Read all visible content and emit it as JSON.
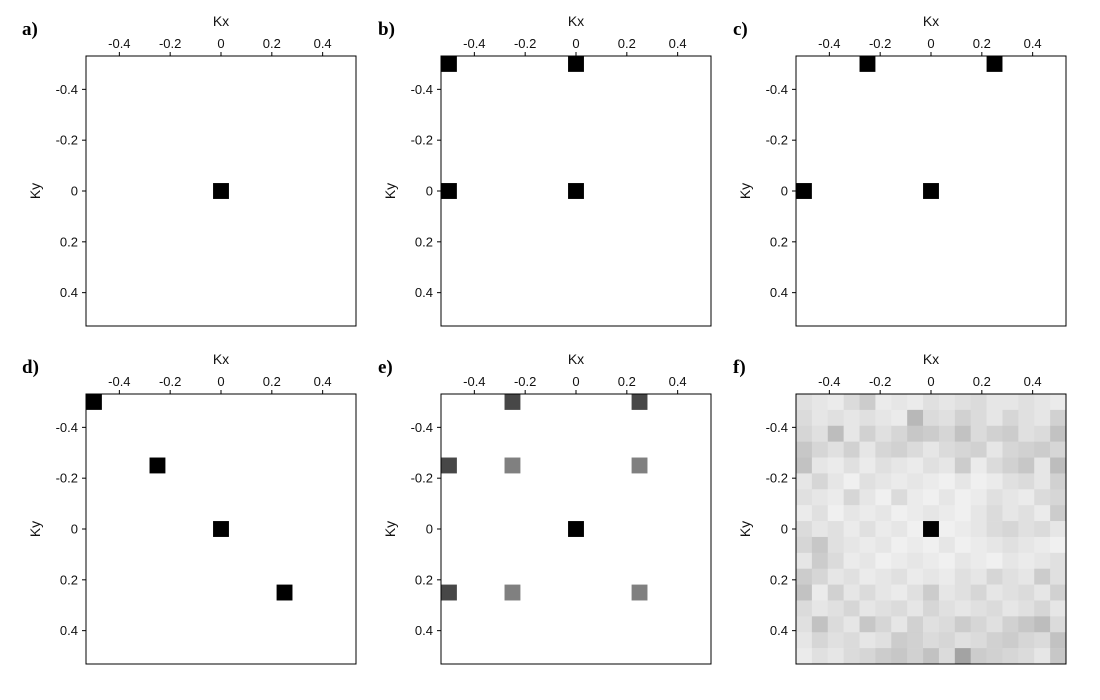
{
  "chart_data": [
    {
      "type": "heatmap",
      "panel_label": "a)",
      "xlabel": "Kx",
      "ylabel": "Ky",
      "xlim": [
        -0.53125,
        0.53125
      ],
      "ylim": [
        -0.53125,
        0.53125
      ],
      "y_inverted": true,
      "xticks": [
        "-0.4",
        "-0.2",
        "0",
        "0.2",
        "0.4"
      ],
      "yticks": [
        "-0.4",
        "-0.2",
        "0",
        "0.2",
        "0.4"
      ],
      "x_tick_position": "top",
      "cells": [
        {
          "kx": 0,
          "ky": 0,
          "intensity": 1
        }
      ]
    },
    {
      "type": "heatmap",
      "panel_label": "b)",
      "xlabel": "Kx",
      "ylabel": "Ky",
      "xlim": [
        -0.53125,
        0.53125
      ],
      "ylim": [
        -0.53125,
        0.53125
      ],
      "y_inverted": true,
      "xticks": [
        "-0.4",
        "-0.2",
        "0",
        "0.2",
        "0.4"
      ],
      "yticks": [
        "-0.4",
        "-0.2",
        "0",
        "0.2",
        "0.4"
      ],
      "x_tick_position": "top",
      "cells": [
        {
          "kx": -0.5,
          "ky": -0.5,
          "intensity": 1
        },
        {
          "kx": 0,
          "ky": -0.5,
          "intensity": 1
        },
        {
          "kx": -0.5,
          "ky": 0,
          "intensity": 1
        },
        {
          "kx": 0,
          "ky": 0,
          "intensity": 1
        }
      ]
    },
    {
      "type": "heatmap",
      "panel_label": "c)",
      "xlabel": "Kx",
      "ylabel": "Ky",
      "xlim": [
        -0.53125,
        0.53125
      ],
      "ylim": [
        -0.53125,
        0.53125
      ],
      "y_inverted": true,
      "xticks": [
        "-0.4",
        "-0.2",
        "0",
        "0.2",
        "0.4"
      ],
      "yticks": [
        "-0.4",
        "-0.2",
        "0",
        "0.2",
        "0.4"
      ],
      "x_tick_position": "top",
      "cells": [
        {
          "kx": -0.25,
          "ky": -0.5,
          "intensity": 1
        },
        {
          "kx": 0.25,
          "ky": -0.5,
          "intensity": 1
        },
        {
          "kx": -0.5,
          "ky": 0,
          "intensity": 1
        },
        {
          "kx": 0,
          "ky": 0,
          "intensity": 1
        }
      ]
    },
    {
      "type": "heatmap",
      "panel_label": "d)",
      "xlabel": "Kx",
      "ylabel": "Ky",
      "xlim": [
        -0.53125,
        0.53125
      ],
      "ylim": [
        -0.53125,
        0.53125
      ],
      "y_inverted": true,
      "xticks": [
        "-0.4",
        "-0.2",
        "0",
        "0.2",
        "0.4"
      ],
      "yticks": [
        "-0.4",
        "-0.2",
        "0",
        "0.2",
        "0.4"
      ],
      "x_tick_position": "top",
      "cells": [
        {
          "kx": -0.5,
          "ky": -0.5,
          "intensity": 1
        },
        {
          "kx": -0.25,
          "ky": -0.25,
          "intensity": 1
        },
        {
          "kx": 0,
          "ky": 0,
          "intensity": 1
        },
        {
          "kx": 0.25,
          "ky": 0.25,
          "intensity": 1
        }
      ]
    },
    {
      "type": "heatmap",
      "panel_label": "e)",
      "xlabel": "Kx",
      "ylabel": "Ky",
      "xlim": [
        -0.53125,
        0.53125
      ],
      "ylim": [
        -0.53125,
        0.53125
      ],
      "y_inverted": true,
      "xticks": [
        "-0.4",
        "-0.2",
        "0",
        "0.2",
        "0.4"
      ],
      "yticks": [
        "-0.4",
        "-0.2",
        "0",
        "0.2",
        "0.4"
      ],
      "x_tick_position": "top",
      "cells": [
        {
          "kx": -0.25,
          "ky": -0.5,
          "intensity": 0.72
        },
        {
          "kx": 0.25,
          "ky": -0.5,
          "intensity": 0.72
        },
        {
          "kx": -0.5,
          "ky": -0.25,
          "intensity": 0.72
        },
        {
          "kx": -0.25,
          "ky": -0.25,
          "intensity": 0.5
        },
        {
          "kx": 0.25,
          "ky": -0.25,
          "intensity": 0.5
        },
        {
          "kx": 0,
          "ky": 0,
          "intensity": 1
        },
        {
          "kx": -0.5,
          "ky": 0.25,
          "intensity": 0.72
        },
        {
          "kx": -0.25,
          "ky": 0.25,
          "intensity": 0.5
        },
        {
          "kx": 0.25,
          "ky": 0.25,
          "intensity": 0.5
        }
      ]
    },
    {
      "type": "heatmap",
      "panel_label": "f)",
      "xlabel": "Kx",
      "ylabel": "Ky",
      "xlim": [
        -0.53125,
        0.53125
      ],
      "ylim": [
        -0.53125,
        0.53125
      ],
      "y_inverted": true,
      "xticks": [
        "-0.4",
        "-0.2",
        "0",
        "0.2",
        "0.4"
      ],
      "yticks": [
        "-0.4",
        "-0.2",
        "0",
        "0.2",
        "0.4"
      ],
      "x_tick_position": "top",
      "grid_start": -0.5,
      "grid_step": 0.0625,
      "grid_values": [
        [
          0.12,
          0.1,
          0.08,
          0.14,
          0.2,
          0.08,
          0.1,
          0.08,
          0.12,
          0.1,
          0.12,
          0.14,
          0.1,
          0.1,
          0.12,
          0.1,
          0.08
        ],
        [
          0.14,
          0.1,
          0.12,
          0.1,
          0.12,
          0.1,
          0.08,
          0.28,
          0.14,
          0.12,
          0.18,
          0.14,
          0.1,
          0.16,
          0.12,
          0.1,
          0.18
        ],
        [
          0.16,
          0.12,
          0.26,
          0.1,
          0.18,
          0.12,
          0.16,
          0.22,
          0.2,
          0.16,
          0.24,
          0.14,
          0.18,
          0.2,
          0.12,
          0.14,
          0.24
        ],
        [
          0.22,
          0.16,
          0.12,
          0.18,
          0.1,
          0.16,
          0.18,
          0.14,
          0.1,
          0.14,
          0.16,
          0.18,
          0.1,
          0.16,
          0.18,
          0.2,
          0.16
        ],
        [
          0.24,
          0.1,
          0.08,
          0.12,
          0.08,
          0.12,
          0.1,
          0.08,
          0.12,
          0.1,
          0.2,
          0.08,
          0.14,
          0.18,
          0.22,
          0.1,
          0.26
        ],
        [
          0.1,
          0.16,
          0.1,
          0.06,
          0.12,
          0.1,
          0.08,
          0.1,
          0.08,
          0.06,
          0.1,
          0.06,
          0.08,
          0.12,
          0.14,
          0.1,
          0.18
        ],
        [
          0.12,
          0.1,
          0.08,
          0.16,
          0.1,
          0.06,
          0.14,
          0.08,
          0.06,
          0.1,
          0.06,
          0.08,
          0.12,
          0.1,
          0.08,
          0.14,
          0.16
        ],
        [
          0.08,
          0.12,
          0.06,
          0.1,
          0.08,
          0.1,
          0.06,
          0.08,
          0.1,
          0.08,
          0.06,
          0.1,
          0.14,
          0.1,
          0.12,
          0.08,
          0.2
        ],
        [
          0.14,
          0.1,
          0.12,
          0.08,
          0.12,
          0.08,
          0.1,
          0.06,
          1.0,
          0.06,
          0.08,
          0.1,
          0.14,
          0.16,
          0.12,
          0.14,
          0.1
        ],
        [
          0.16,
          0.22,
          0.12,
          0.1,
          0.08,
          0.1,
          0.06,
          0.08,
          0.06,
          0.1,
          0.06,
          0.08,
          0.1,
          0.12,
          0.1,
          0.08,
          0.06
        ],
        [
          0.1,
          0.2,
          0.14,
          0.08,
          0.1,
          0.06,
          0.08,
          0.1,
          0.08,
          0.06,
          0.1,
          0.08,
          0.06,
          0.1,
          0.08,
          0.1,
          0.12
        ],
        [
          0.2,
          0.16,
          0.1,
          0.12,
          0.08,
          0.1,
          0.12,
          0.08,
          0.1,
          0.08,
          0.12,
          0.1,
          0.16,
          0.12,
          0.1,
          0.2,
          0.12
        ],
        [
          0.24,
          0.08,
          0.18,
          0.1,
          0.14,
          0.1,
          0.08,
          0.12,
          0.2,
          0.1,
          0.12,
          0.16,
          0.1,
          0.12,
          0.14,
          0.1,
          0.18
        ],
        [
          0.14,
          0.1,
          0.12,
          0.16,
          0.1,
          0.12,
          0.14,
          0.1,
          0.16,
          0.12,
          0.1,
          0.12,
          0.14,
          0.1,
          0.12,
          0.16,
          0.1
        ],
        [
          0.12,
          0.24,
          0.14,
          0.1,
          0.22,
          0.16,
          0.1,
          0.18,
          0.12,
          0.14,
          0.2,
          0.16,
          0.12,
          0.18,
          0.22,
          0.26,
          0.14
        ],
        [
          0.1,
          0.16,
          0.12,
          0.14,
          0.1,
          0.12,
          0.2,
          0.18,
          0.14,
          0.16,
          0.12,
          0.14,
          0.18,
          0.2,
          0.16,
          0.14,
          0.24
        ],
        [
          0.08,
          0.12,
          0.1,
          0.14,
          0.16,
          0.2,
          0.22,
          0.18,
          0.24,
          0.14,
          0.36,
          0.2,
          0.18,
          0.16,
          0.14,
          0.1,
          0.22
        ]
      ]
    }
  ]
}
